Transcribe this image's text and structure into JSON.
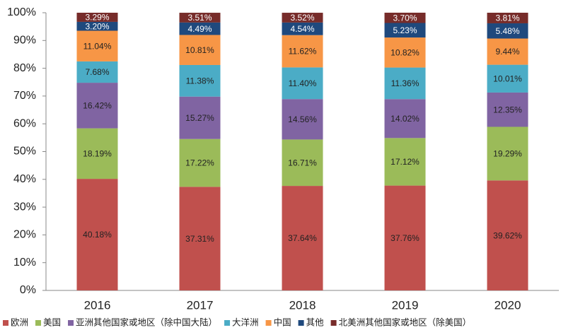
{
  "chart_data": {
    "type": "stacked_bar",
    "categories": [
      "2016",
      "2017",
      "2018",
      "2019",
      "2020"
    ],
    "series": [
      {
        "name": "欧洲",
        "color": "#c0504d",
        "values": [
          40.18,
          37.31,
          37.64,
          37.76,
          39.62
        ],
        "value_labels": [
          "40.18%",
          "37.31%",
          "37.64%",
          "37.76%",
          "39.62%"
        ]
      },
      {
        "name": "美国",
        "color": "#9bbb59",
        "values": [
          18.19,
          17.22,
          16.71,
          17.12,
          19.29
        ],
        "value_labels": [
          "18.19%",
          "17.22%",
          "16.71%",
          "17.12%",
          "19.29%"
        ]
      },
      {
        "name": "亚洲其他国家或地区（除中国大陆）",
        "color": "#8064a2",
        "values": [
          16.42,
          15.27,
          14.56,
          14.02,
          12.35
        ],
        "value_labels": [
          "16.42%",
          "15.27%",
          "14.56%",
          "14.02%",
          "12.35%"
        ]
      },
      {
        "name": "大洋洲",
        "color": "#4bacc6",
        "values": [
          7.68,
          11.38,
          11.4,
          11.36,
          10.01
        ],
        "value_labels": [
          "7.68%",
          "11.38%",
          "11.40%",
          "11.36%",
          "10.01%"
        ]
      },
      {
        "name": "中国",
        "color": "#f79646",
        "values": [
          11.04,
          10.81,
          11.62,
          10.82,
          9.44
        ],
        "value_labels": [
          "11.04%",
          "10.81%",
          "11.62%",
          "10.82%",
          "9.44%"
        ]
      },
      {
        "name": "其他",
        "color": "#1f497d",
        "values": [
          3.2,
          4.49,
          4.54,
          5.23,
          5.48
        ],
        "value_labels": [
          "3.20%",
          "4.49%",
          "4.54%",
          "5.23%",
          "5.48%"
        ]
      },
      {
        "name": "北美洲其他国家或地区（除美国）",
        "color": "#772c2a",
        "values": [
          3.29,
          3.51,
          3.52,
          3.7,
          3.81
        ],
        "value_labels": [
          "3.29%",
          "3.51%",
          "3.52%",
          "3.70%",
          "3.81%"
        ]
      }
    ],
    "ylim": [
      0,
      100
    ],
    "yticks": [
      {
        "value": 0,
        "label": "0%"
      },
      {
        "value": 10,
        "label": "10%"
      },
      {
        "value": 20,
        "label": "20%"
      },
      {
        "value": 30,
        "label": "30%"
      },
      {
        "value": 40,
        "label": "40%"
      },
      {
        "value": 50,
        "label": "50%"
      },
      {
        "value": 60,
        "label": "60%"
      },
      {
        "value": 70,
        "label": "70%"
      },
      {
        "value": 80,
        "label": "80%"
      },
      {
        "value": 90,
        "label": "90%"
      },
      {
        "value": 100,
        "label": "100%"
      }
    ],
    "grid": false,
    "legend": "bottom"
  }
}
